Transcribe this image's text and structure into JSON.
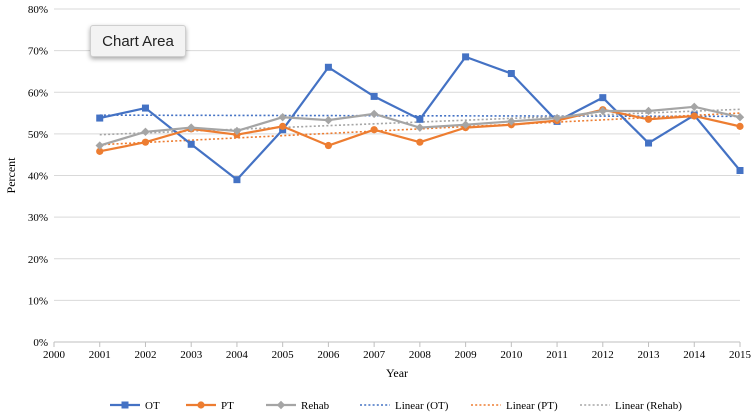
{
  "chart_data": {
    "type": "line",
    "title": "",
    "xlabel": "Year",
    "ylabel": "Percent",
    "x_ticks": [
      "2000",
      "2001",
      "2002",
      "2003",
      "2004",
      "2005",
      "2006",
      "2007",
      "2008",
      "2009",
      "2010",
      "2011",
      "2012",
      "2013",
      "2014",
      "2015"
    ],
    "y_ticks": [
      "0%",
      "10%",
      "20%",
      "30%",
      "40%",
      "50%",
      "60%",
      "70%",
      "80%"
    ],
    "xlim": [
      2000,
      2015
    ],
    "ylim": [
      0,
      80
    ],
    "grid": "horizontal",
    "legend_position": "bottom",
    "x": [
      2001,
      2002,
      2003,
      2004,
      2005,
      2006,
      2007,
      2008,
      2009,
      2010,
      2011,
      2012,
      2013,
      2014,
      2015
    ],
    "series": [
      {
        "name": "OT",
        "color": "#4472c4",
        "marker": "square",
        "values": [
          53.8,
          56.2,
          47.5,
          39.0,
          51.0,
          66.0,
          59.0,
          53.5,
          68.5,
          64.5,
          53.0,
          58.7,
          47.8,
          54.5,
          41.2
        ]
      },
      {
        "name": "PT",
        "color": "#ed7d31",
        "marker": "circle",
        "values": [
          45.8,
          48.0,
          51.2,
          49.8,
          51.8,
          47.2,
          51.0,
          48.0,
          51.5,
          52.2,
          53.2,
          55.8,
          53.5,
          54.3,
          51.8
        ]
      },
      {
        "name": "Rehab",
        "color": "#a5a5a5",
        "marker": "diamond",
        "values": [
          47.2,
          50.5,
          51.5,
          50.7,
          54.0,
          53.3,
          54.8,
          51.5,
          52.2,
          53.0,
          53.8,
          55.5,
          55.5,
          56.5,
          54.0
        ]
      }
    ],
    "trendlines": [
      {
        "name": "Linear (OT)",
        "color": "#4472c4",
        "start": [
          2001,
          54.5
        ],
        "end": [
          2015,
          54.2
        ]
      },
      {
        "name": "Linear (PT)",
        "color": "#ed7d31",
        "start": [
          2001,
          47.4
        ],
        "end": [
          2015,
          55.0
        ]
      },
      {
        "name": "Linear (Rehab)",
        "color": "#a5a5a5",
        "start": [
          2001,
          49.8
        ],
        "end": [
          2015,
          55.9
        ]
      }
    ]
  },
  "tooltip": {
    "label": "Chart Area"
  }
}
